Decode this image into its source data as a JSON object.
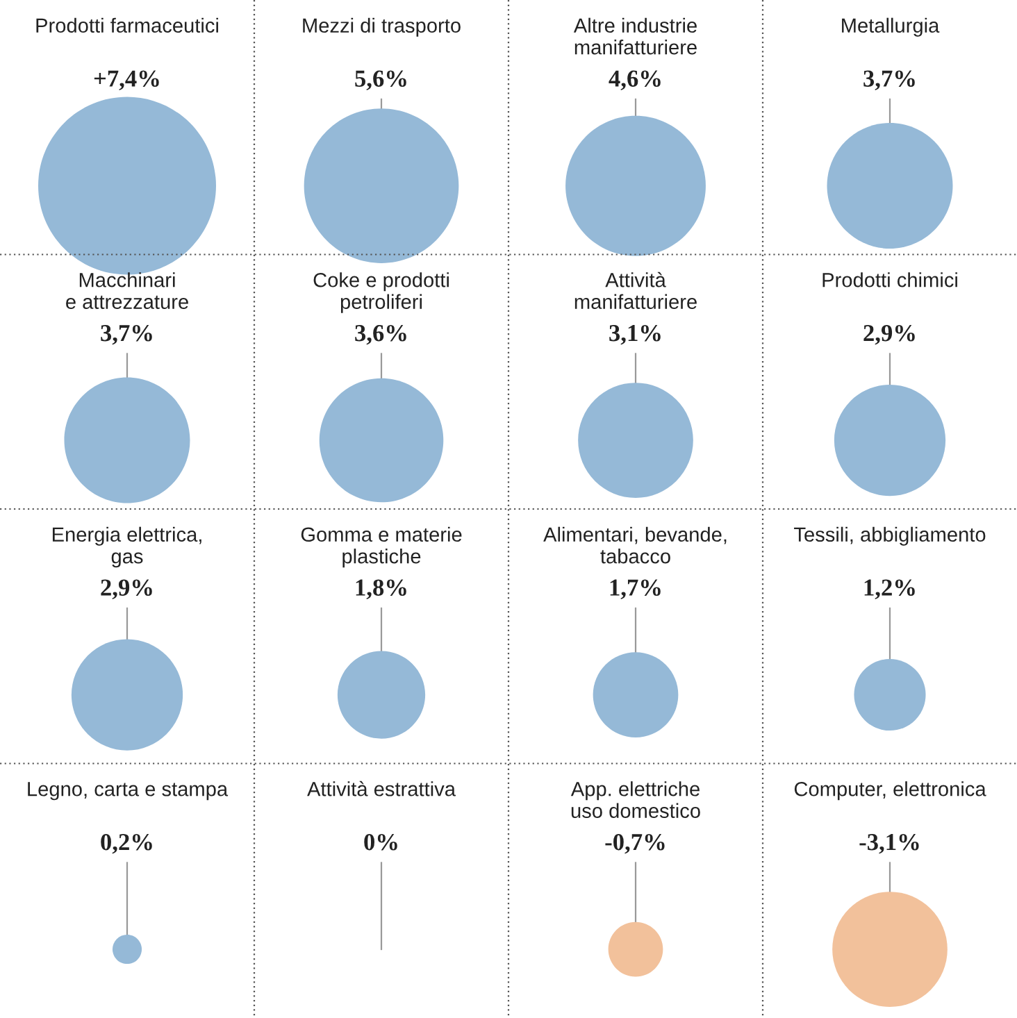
{
  "chart_data": {
    "type": "other",
    "categories": [
      "Prodotti farmaceutici",
      "Mezzi di trasporto",
      "Altre industrie\nmanifatturiere",
      "Metallurgia",
      "Macchinari\ne attrezzature",
      "Coke e prodotti\npetroliferi",
      "Attività\nmanifatturiere",
      "Prodotti chimici",
      "Energia elettrica,\ngas",
      "Gomma e materie\nplastiche",
      "Alimentari, bevande,\ntabacco",
      "Tessili, abbigliamento",
      "Legno, carta e stampa",
      "Attività estrattiva",
      "App. elettriche\nuso domestico",
      "Computer, elettronica"
    ],
    "values": [
      7.4,
      5.6,
      4.6,
      3.7,
      3.7,
      3.6,
      3.1,
      2.9,
      2.9,
      1.8,
      1.7,
      1.2,
      0.2,
      0,
      -0.7,
      -3.1
    ],
    "value_labels": [
      "+7,4%",
      "5,6%",
      "4,6%",
      "3,7%",
      "3,7%",
      "3,6%",
      "3,1%",
      "2,9%",
      "2,9%",
      "1,8%",
      "1,7%",
      "1,2%",
      "0,2%",
      "0%",
      "-0,7%",
      "-3,1%"
    ],
    "colors": [
      "#95b9d7",
      "#95b9d7",
      "#95b9d7",
      "#95b9d7",
      "#95b9d7",
      "#95b9d7",
      "#95b9d7",
      "#95b9d7",
      "#95b9d7",
      "#95b9d7",
      "#95b9d7",
      "#95b9d7",
      "#95b9d7",
      "#95b9d7",
      "#f2c19b",
      "#f2c19b"
    ]
  }
}
